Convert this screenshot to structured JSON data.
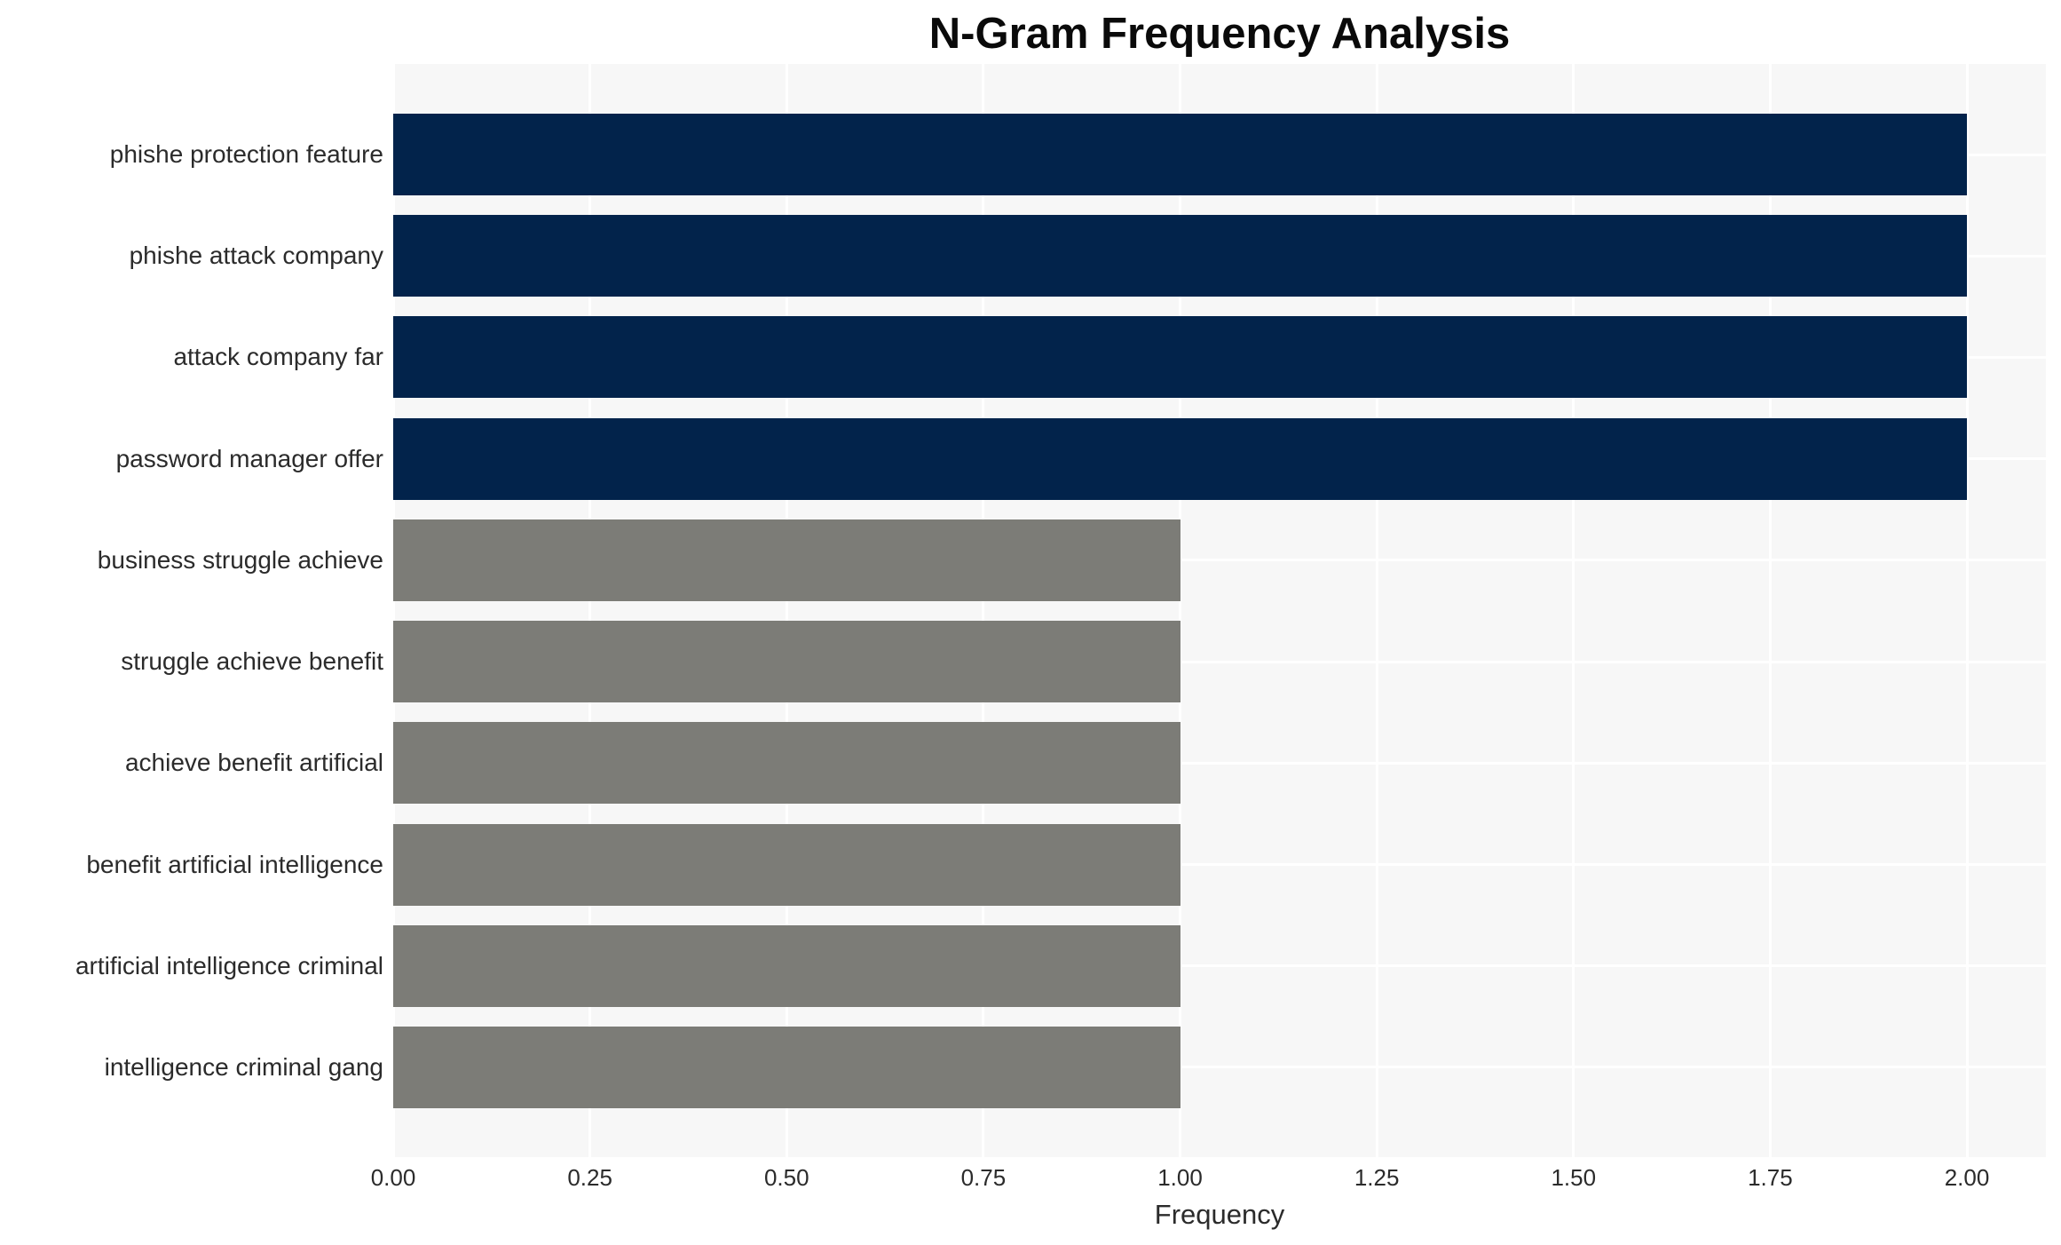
{
  "title": "N-Gram Frequency Analysis",
  "x_axis": {
    "label": "Frequency",
    "ticks": [
      "0.00",
      "0.25",
      "0.50",
      "0.75",
      "1.00",
      "1.25",
      "1.50",
      "1.75",
      "2.00"
    ],
    "tick_values": [
      0,
      0.25,
      0.5,
      0.75,
      1.0,
      1.25,
      1.5,
      1.75,
      2.0
    ]
  },
  "chart_data": {
    "type": "bar",
    "orientation": "horizontal",
    "title": "N-Gram Frequency Analysis",
    "xlabel": "Frequency",
    "ylabel": "",
    "categories": [
      "phishe protection feature",
      "phishe attack company",
      "attack company far",
      "password manager offer",
      "business struggle achieve",
      "struggle achieve benefit",
      "achieve benefit artificial",
      "benefit artificial intelligence",
      "artificial intelligence criminal",
      "intelligence criminal gang"
    ],
    "values": [
      2,
      2,
      2,
      2,
      1,
      1,
      1,
      1,
      1,
      1
    ],
    "bar_colors": [
      "#02234B",
      "#02234B",
      "#02234B",
      "#02234B",
      "#7C7C77",
      "#7C7C77",
      "#7C7C77",
      "#7C7C77",
      "#7C7C77",
      "#7C7C77"
    ],
    "xlim": [
      0,
      2.1
    ],
    "grid": true,
    "legend": false,
    "plot_background": "#F7F7F7",
    "grid_color": "#FFFFFF",
    "colors": {
      "high_frequency_bar": "#02234B",
      "low_frequency_bar": "#7C7C77"
    }
  }
}
